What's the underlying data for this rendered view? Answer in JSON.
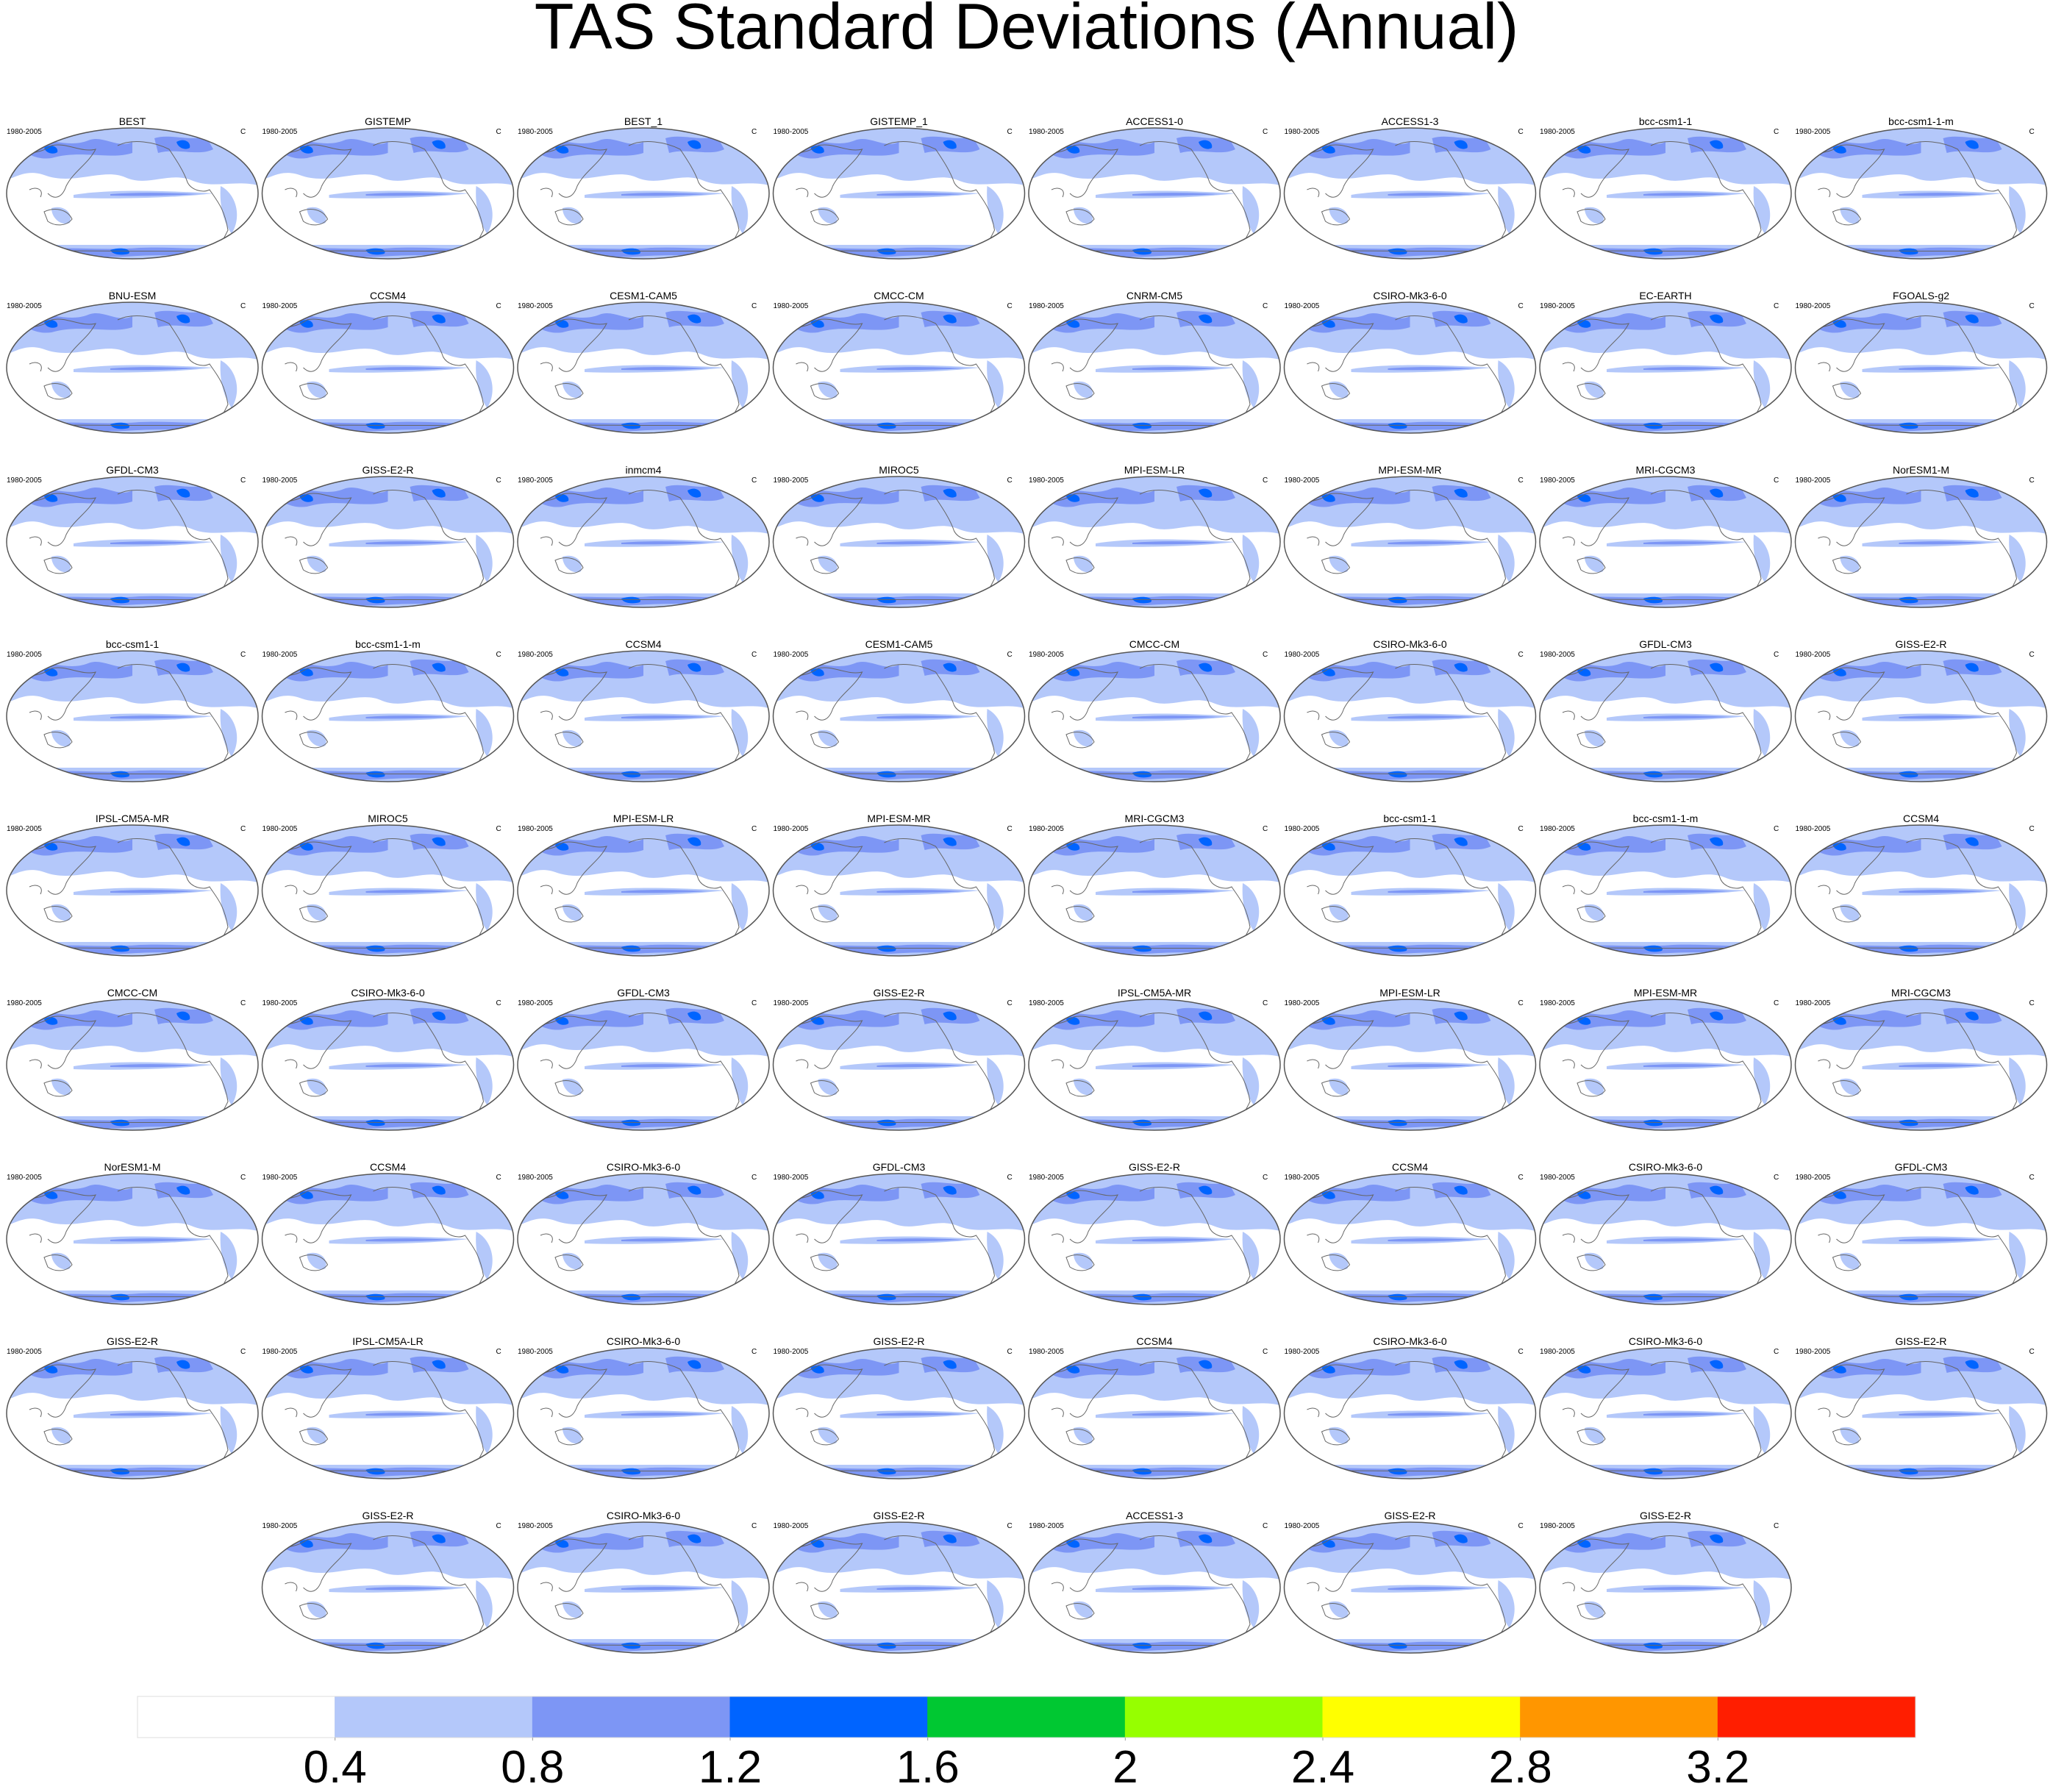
{
  "title": "TAS Standard Deviations (Annual)",
  "period": "1980-2005",
  "units": "C",
  "panels": [
    "BEST",
    "GISTEMP",
    "BEST_1",
    "GISTEMP_1",
    "ACCESS1-0",
    "ACCESS1-3",
    "bcc-csm1-1",
    "bcc-csm1-1-m",
    "BNU-ESM",
    "CCSM4",
    "CESM1-CAM5",
    "CMCC-CM",
    "CNRM-CM5",
    "CSIRO-Mk3-6-0",
    "EC-EARTH",
    "FGOALS-g2",
    "GFDL-CM3",
    "GISS-E2-R",
    "inmcm4",
    "MIROC5",
    "MPI-ESM-LR",
    "MPI-ESM-MR",
    "MRI-CGCM3",
    "NorESM1-M",
    "bcc-csm1-1",
    "bcc-csm1-1-m",
    "CCSM4",
    "CESM1-CAM5",
    "CMCC-CM",
    "CSIRO-Mk3-6-0",
    "GFDL-CM3",
    "GISS-E2-R",
    "IPSL-CM5A-MR",
    "MIROC5",
    "MPI-ESM-LR",
    "MPI-ESM-MR",
    "MRI-CGCM3",
    "bcc-csm1-1",
    "bcc-csm1-1-m",
    "CCSM4",
    "CMCC-CM",
    "CSIRO-Mk3-6-0",
    "GFDL-CM3",
    "GISS-E2-R",
    "IPSL-CM5A-MR",
    "MPI-ESM-LR",
    "MPI-ESM-MR",
    "MRI-CGCM3",
    "NorESM1-M",
    "CCSM4",
    "CSIRO-Mk3-6-0",
    "GFDL-CM3",
    "GISS-E2-R",
    "CCSM4",
    "CSIRO-Mk3-6-0",
    "GFDL-CM3",
    "GISS-E2-R",
    "IPSL-CM5A-LR",
    "CSIRO-Mk3-6-0",
    "GISS-E2-R",
    "CCSM4",
    "CSIRO-Mk3-6-0",
    "CSIRO-Mk3-6-0",
    "GISS-E2-R",
    "GISS-E2-R",
    "CSIRO-Mk3-6-0",
    "GISS-E2-R",
    "ACCESS1-3",
    "GISS-E2-R",
    "GISS-E2-R"
  ],
  "colorbar": {
    "colors": [
      "#ffffff",
      "#b4c8fa",
      "#7d96f5",
      "#0064ff",
      "#00c832",
      "#96ff00",
      "#ffff00",
      "#ff9600",
      "#ff1e00"
    ],
    "ticks": [
      0.4,
      0.8,
      1.2,
      1.6,
      2,
      2.4,
      2.8,
      3.2
    ]
  }
}
